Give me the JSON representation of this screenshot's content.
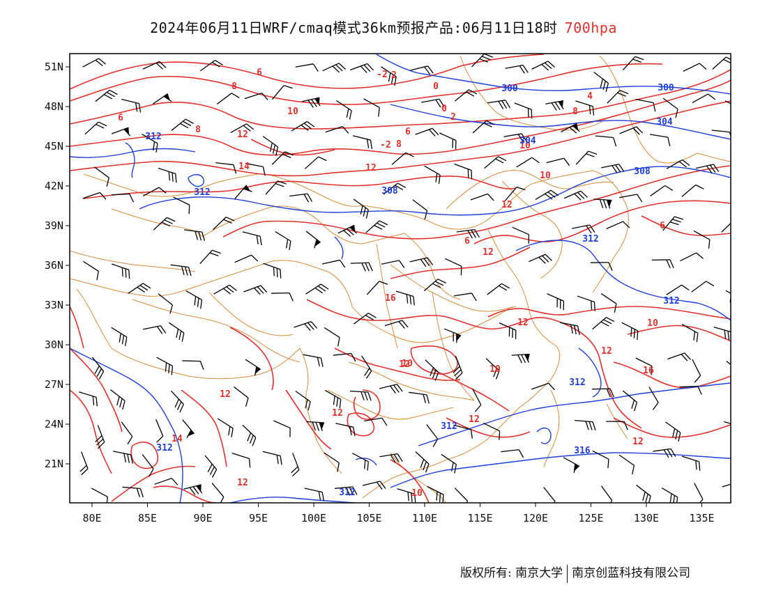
{
  "header": {
    "title": "2024年06月11日WRF/cmaq模式36km预报产品:06月11日18时",
    "level": "700hpa"
  },
  "map": {
    "lon_ticks": [
      "80E",
      "85E",
      "90E",
      "95E",
      "100E",
      "105E",
      "110E",
      "115E",
      "120E",
      "125E",
      "130E",
      "135E"
    ],
    "lat_ticks": [
      "51N",
      "48N",
      "45N",
      "42N",
      "39N",
      "36N",
      "33N",
      "30N",
      "27N",
      "24N",
      "21N"
    ],
    "colors": {
      "temperature": "#e0302c",
      "height": "#1f3fd6",
      "border": "#d98a3a",
      "wind": "#000000"
    },
    "temperature_labels": [
      "6",
      "8",
      "2",
      "0",
      "6",
      "-2",
      "8",
      "10",
      "12",
      "8",
      "6",
      "4",
      "2",
      "0",
      "-2",
      "10",
      "14",
      "12",
      "16",
      "6",
      "14",
      "12",
      "10",
      "12",
      "12",
      "10",
      "12",
      "12",
      "10",
      "12",
      "16",
      "12",
      "12",
      "12",
      "10",
      "10",
      "6",
      "8",
      "12"
    ],
    "height_labels": [
      "300",
      "300",
      "304",
      "304",
      "308",
      "308",
      "312",
      "312",
      "312",
      "312",
      "316",
      "312",
      "312",
      "312",
      "312"
    ]
  },
  "footer": {
    "left": "版权所有: 南京大学",
    "right": "南京创蓝科技有限公司"
  }
}
